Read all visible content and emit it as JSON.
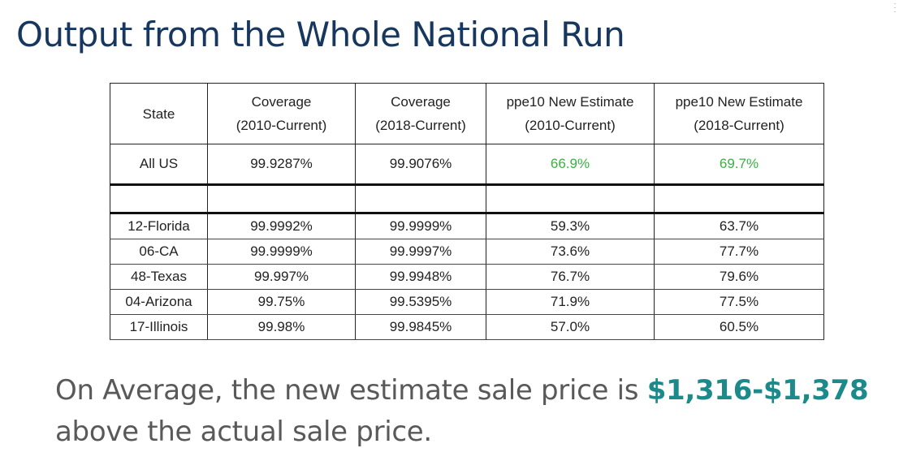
{
  "title": "Output from the Whole National Run",
  "table": {
    "headers": [
      {
        "line1": "State",
        "line2": ""
      },
      {
        "line1": "Coverage",
        "line2": "(2010-Current)"
      },
      {
        "line1": "Coverage",
        "line2": "(2018-Current)"
      },
      {
        "line1": "ppe10 New Estimate",
        "line2": "(2010-Current)"
      },
      {
        "line1": "ppe10 New Estimate",
        "line2": "(2018-Current)"
      }
    ],
    "all_us": [
      "All US",
      "99.9287%",
      "99.9076%",
      "66.9%",
      "69.7%"
    ],
    "rows": [
      [
        "12-Florida",
        "99.9992%",
        "99.9999%",
        "59.3%",
        "63.7%"
      ],
      [
        "06-CA",
        "99.9999%",
        "99.9997%",
        "73.6%",
        "77.7%"
      ],
      [
        "48-Texas",
        "99.997%",
        "99.9948%",
        "76.7%",
        "79.6%"
      ],
      [
        "04-Arizona",
        "99.75%",
        "99.5395%",
        "71.9%",
        "77.5%"
      ],
      [
        "17-Illinois",
        "99.98%",
        "99.9845%",
        "57.0%",
        "60.5%"
      ]
    ]
  },
  "summary": {
    "prefix": "On Average, the new estimate sale price is ",
    "price": "$1,316-$1,378",
    "suffix": " above the actual sale price."
  },
  "colors": {
    "title": "#17375e",
    "highlight": "#3cb043",
    "price": "#1c8a8a",
    "body_text": "#595959"
  },
  "icons": {
    "menu": "vertical-dots-icon"
  }
}
